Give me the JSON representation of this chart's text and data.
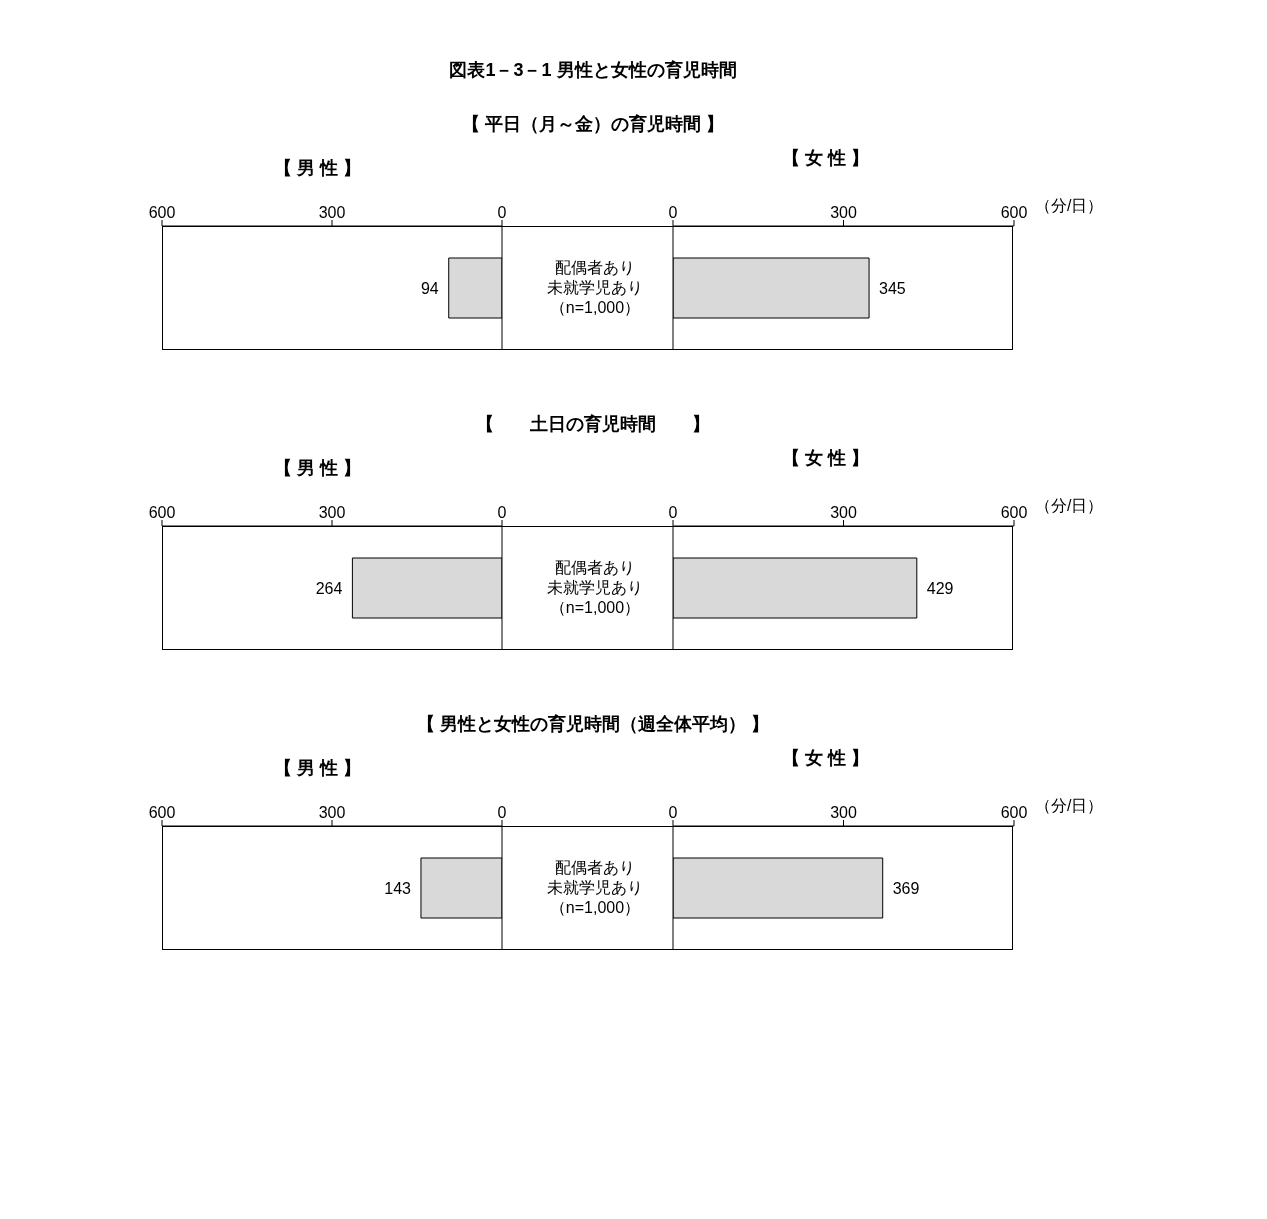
{
  "chart_data": [
    {
      "type": "bar",
      "orientation": "horizontal",
      "title": "図表1－3－1 男性と女性の育児時間",
      "subtitle": "【 平日（月～金）の育児時間 】",
      "annotations": [
        "【 男 性 】"
      ],
      "categories": [
        "配偶者あり未就学児あり（n=1,000）"
      ],
      "values": [
        94
      ],
      "color": "#d9d9d9",
      "xlim": [
        600,
        0
      ],
      "xticks": [
        600,
        300,
        0
      ],
      "data_labels": true
    },
    {
      "type": "bar",
      "orientation": "horizontal",
      "annotations": [
        "【 女 性 】"
      ],
      "xlabel": "（分/日）",
      "categories": [
        null
      ],
      "values": [
        345
      ],
      "color": "#d9d9d9",
      "xlim": [
        0,
        600
      ],
      "xticks": [
        0,
        300,
        600
      ],
      "data_labels": true,
      "tick_labels": "x"
    },
    {
      "type": "bar",
      "orientation": "horizontal",
      "subtitle": "【　　土日の育児時間　　】",
      "annotations": [
        "【 男 性 】"
      ],
      "categories": [
        "配偶者あり未就学児あり（n=1,000）"
      ],
      "values": [
        264
      ],
      "color": "#d9d9d9",
      "xlim": [
        600,
        0
      ],
      "xticks": [
        600,
        300,
        0
      ],
      "data_labels": true
    },
    {
      "type": "bar",
      "orientation": "horizontal",
      "annotations": [
        "【 女 性 】"
      ],
      "xlabel": "（分/日）",
      "categories": [
        null
      ],
      "values": [
        429
      ],
      "color": "#d9d9d9",
      "xlim": [
        0,
        600
      ],
      "xticks": [
        0,
        300,
        600
      ],
      "data_labels": true,
      "tick_labels": "x"
    },
    {
      "type": "bar",
      "orientation": "horizontal",
      "subtitle": "【 男性と女性の育児時間（週全体平均） 】",
      "annotations": [
        "【 男 性 】"
      ],
      "categories": [
        "配偶者あり未就学児あり（n=1,000）"
      ],
      "values": [
        143
      ],
      "color": "#d9d9d9",
      "xlim": [
        600,
        0
      ],
      "xticks": [
        600,
        300,
        0
      ],
      "data_labels": true
    },
    {
      "type": "bar",
      "orientation": "horizontal",
      "annotations": [
        "【 女 性 】"
      ],
      "xlabel": "（分/日）",
      "categories": [
        null
      ],
      "values": [
        369
      ],
      "color": "#d9d9d9",
      "xlim": [
        0,
        600
      ],
      "xticks": [
        0,
        300,
        600
      ],
      "data_labels": true,
      "tick_labels": "x"
    }
  ]
}
